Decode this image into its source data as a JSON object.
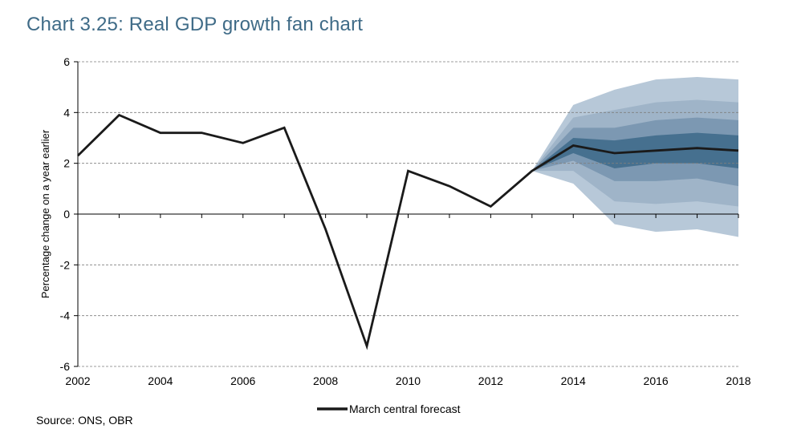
{
  "title": "Chart 3.25: Real GDP growth fan chart",
  "source": "Source: ONS, OBR",
  "colors": {
    "title": "#3f6b87",
    "line": "#1a1a1a",
    "fan_outer": "#b7c8d8",
    "fan_3": "#9fb4c8",
    "fan_2": "#7c98b2",
    "fan_inner": "#46708f",
    "grid": "#7f7f7f"
  },
  "chart_data": {
    "type": "line",
    "title": "Chart 3.25: Real GDP growth fan chart",
    "ylabel": "Percentage change on a year earlier",
    "xlabel": "",
    "xlim": [
      2002,
      2018
    ],
    "ylim": [
      -6,
      6
    ],
    "x_ticks": [
      "2002",
      "2004",
      "2006",
      "2008",
      "2010",
      "2012",
      "2014",
      "2016",
      "2018"
    ],
    "y_ticks": [
      "6",
      "4",
      "2",
      "0",
      "-2",
      "-4",
      "-6"
    ],
    "grid": "horizontal dashed",
    "legend_position": "bottom-center",
    "series": [
      {
        "name": "March central forecast",
        "x": [
          2002,
          2003,
          2004,
          2005,
          2006,
          2007,
          2008,
          2009,
          2010,
          2011,
          2012,
          2013,
          2014,
          2015,
          2016,
          2017,
          2018
        ],
        "values": [
          2.3,
          3.9,
          3.2,
          3.2,
          2.8,
          3.4,
          -0.6,
          -5.2,
          1.7,
          1.1,
          0.3,
          1.7,
          2.7,
          2.4,
          2.5,
          2.6,
          2.5
        ]
      }
    ],
    "fan": {
      "x": [
        2013,
        2014,
        2015,
        2016,
        2017,
        2018
      ],
      "bands": [
        {
          "lower": [
            1.7,
            1.2,
            -0.4,
            -0.7,
            -0.6,
            -0.9
          ],
          "upper": [
            1.7,
            4.3,
            4.9,
            5.3,
            5.4,
            5.3
          ]
        },
        {
          "lower": [
            1.7,
            1.7,
            0.5,
            0.4,
            0.5,
            0.3
          ],
          "upper": [
            1.7,
            3.8,
            4.1,
            4.4,
            4.5,
            4.4
          ]
        },
        {
          "lower": [
            1.7,
            2.1,
            1.3,
            1.3,
            1.4,
            1.1
          ],
          "upper": [
            1.7,
            3.4,
            3.4,
            3.7,
            3.8,
            3.7
          ]
        },
        {
          "lower": [
            1.7,
            2.4,
            1.8,
            2.0,
            2.0,
            1.8
          ],
          "upper": [
            1.7,
            3.0,
            2.9,
            3.1,
            3.2,
            3.1
          ]
        }
      ]
    }
  }
}
